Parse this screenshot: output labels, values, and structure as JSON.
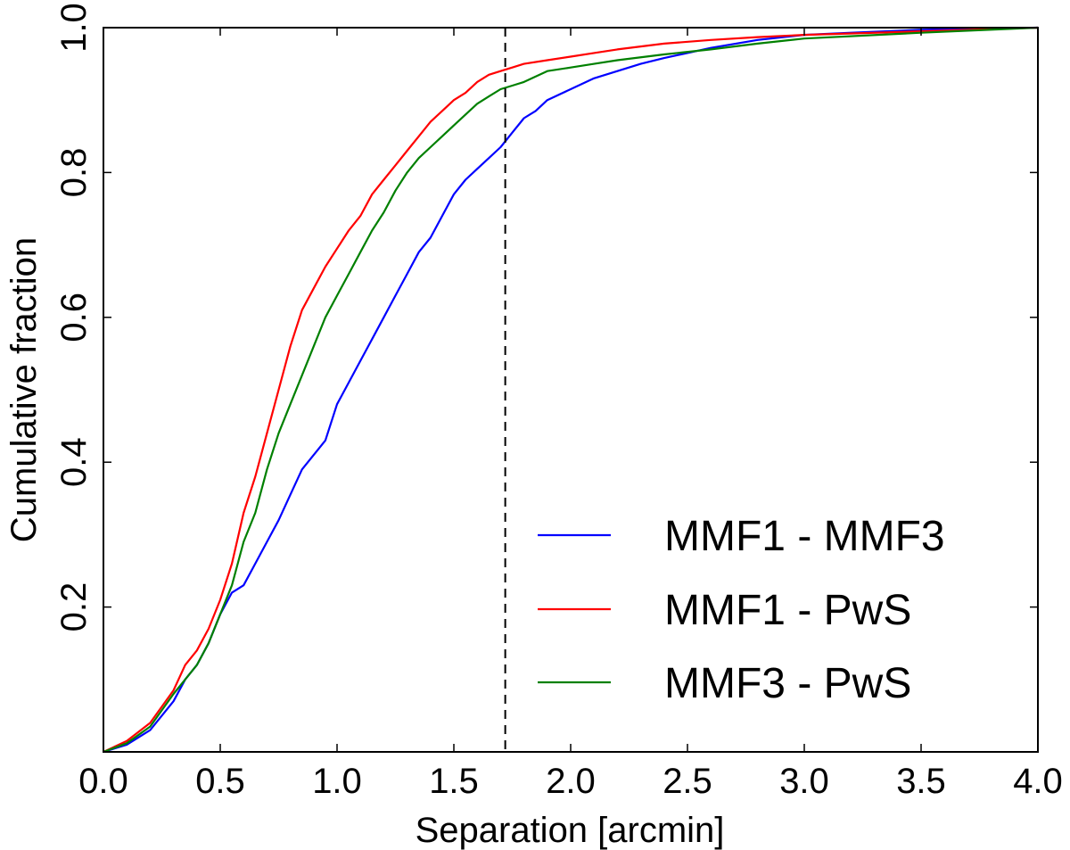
{
  "chart_data": {
    "type": "line",
    "title": "",
    "xlabel": "Separation [arcmin]",
    "ylabel": "Cumulative fraction",
    "xlim": [
      0.0,
      4.0
    ],
    "ylim": [
      0.0,
      1.0
    ],
    "x_ticks": [
      "0.0",
      "0.5",
      "1.0",
      "1.5",
      "2.0",
      "2.5",
      "3.0",
      "3.5",
      "4.0"
    ],
    "y_ticks": [
      "0.2",
      "0.4",
      "0.6",
      "0.8",
      "1.0"
    ],
    "grid": false,
    "legend_position": "bottom-right",
    "vline": {
      "x": 1.72,
      "style": "dashed",
      "color": "#000000"
    },
    "series": [
      {
        "name": "MMF1 - MMF3",
        "color": "#0000ff",
        "x": [
          0.0,
          0.1,
          0.2,
          0.3,
          0.35,
          0.4,
          0.45,
          0.5,
          0.55,
          0.6,
          0.65,
          0.7,
          0.75,
          0.8,
          0.85,
          0.9,
          0.95,
          1.0,
          1.05,
          1.1,
          1.15,
          1.2,
          1.25,
          1.3,
          1.35,
          1.4,
          1.45,
          1.5,
          1.55,
          1.6,
          1.65,
          1.7,
          1.75,
          1.8,
          1.85,
          1.9,
          2.0,
          2.1,
          2.2,
          2.3,
          2.4,
          2.5,
          2.6,
          2.8,
          3.0,
          3.2,
          3.5,
          3.8,
          4.0
        ],
        "values": [
          0.0,
          0.01,
          0.03,
          0.07,
          0.1,
          0.12,
          0.15,
          0.19,
          0.22,
          0.23,
          0.26,
          0.29,
          0.32,
          0.355,
          0.39,
          0.41,
          0.43,
          0.48,
          0.51,
          0.54,
          0.57,
          0.6,
          0.63,
          0.66,
          0.69,
          0.71,
          0.74,
          0.77,
          0.79,
          0.805,
          0.82,
          0.835,
          0.855,
          0.875,
          0.885,
          0.9,
          0.915,
          0.93,
          0.94,
          0.95,
          0.958,
          0.965,
          0.972,
          0.983,
          0.99,
          0.993,
          0.997,
          0.999,
          1.0
        ]
      },
      {
        "name": "MMF1 - PwS",
        "color": "#ff0000",
        "x": [
          0.0,
          0.1,
          0.2,
          0.3,
          0.35,
          0.4,
          0.45,
          0.5,
          0.55,
          0.6,
          0.65,
          0.7,
          0.75,
          0.8,
          0.85,
          0.9,
          0.95,
          1.0,
          1.05,
          1.1,
          1.15,
          1.2,
          1.25,
          1.3,
          1.35,
          1.4,
          1.45,
          1.5,
          1.55,
          1.6,
          1.65,
          1.7,
          1.75,
          1.8,
          1.9,
          2.0,
          2.1,
          2.2,
          2.4,
          2.6,
          2.8,
          3.0,
          3.5,
          4.0
        ],
        "values": [
          0.0,
          0.015,
          0.04,
          0.085,
          0.12,
          0.14,
          0.17,
          0.21,
          0.26,
          0.33,
          0.38,
          0.44,
          0.5,
          0.56,
          0.61,
          0.64,
          0.67,
          0.695,
          0.72,
          0.74,
          0.77,
          0.79,
          0.81,
          0.83,
          0.85,
          0.87,
          0.885,
          0.9,
          0.91,
          0.925,
          0.935,
          0.94,
          0.945,
          0.95,
          0.955,
          0.96,
          0.965,
          0.97,
          0.978,
          0.983,
          0.987,
          0.99,
          0.995,
          1.0
        ]
      },
      {
        "name": "MMF3 - PwS",
        "color": "#008000",
        "x": [
          0.0,
          0.1,
          0.2,
          0.3,
          0.35,
          0.4,
          0.45,
          0.5,
          0.55,
          0.6,
          0.65,
          0.7,
          0.75,
          0.8,
          0.85,
          0.9,
          0.95,
          1.0,
          1.05,
          1.1,
          1.15,
          1.2,
          1.25,
          1.3,
          1.35,
          1.4,
          1.45,
          1.5,
          1.55,
          1.6,
          1.65,
          1.7,
          1.75,
          1.8,
          1.9,
          2.0,
          2.1,
          2.2,
          2.4,
          2.6,
          2.8,
          3.0,
          3.5,
          4.0
        ],
        "values": [
          0.0,
          0.012,
          0.035,
          0.08,
          0.1,
          0.12,
          0.15,
          0.19,
          0.23,
          0.29,
          0.33,
          0.39,
          0.44,
          0.48,
          0.52,
          0.56,
          0.6,
          0.63,
          0.66,
          0.69,
          0.72,
          0.745,
          0.775,
          0.8,
          0.82,
          0.835,
          0.85,
          0.865,
          0.88,
          0.895,
          0.905,
          0.915,
          0.92,
          0.925,
          0.94,
          0.945,
          0.95,
          0.955,
          0.963,
          0.97,
          0.978,
          0.985,
          0.993,
          1.0
        ]
      }
    ]
  }
}
